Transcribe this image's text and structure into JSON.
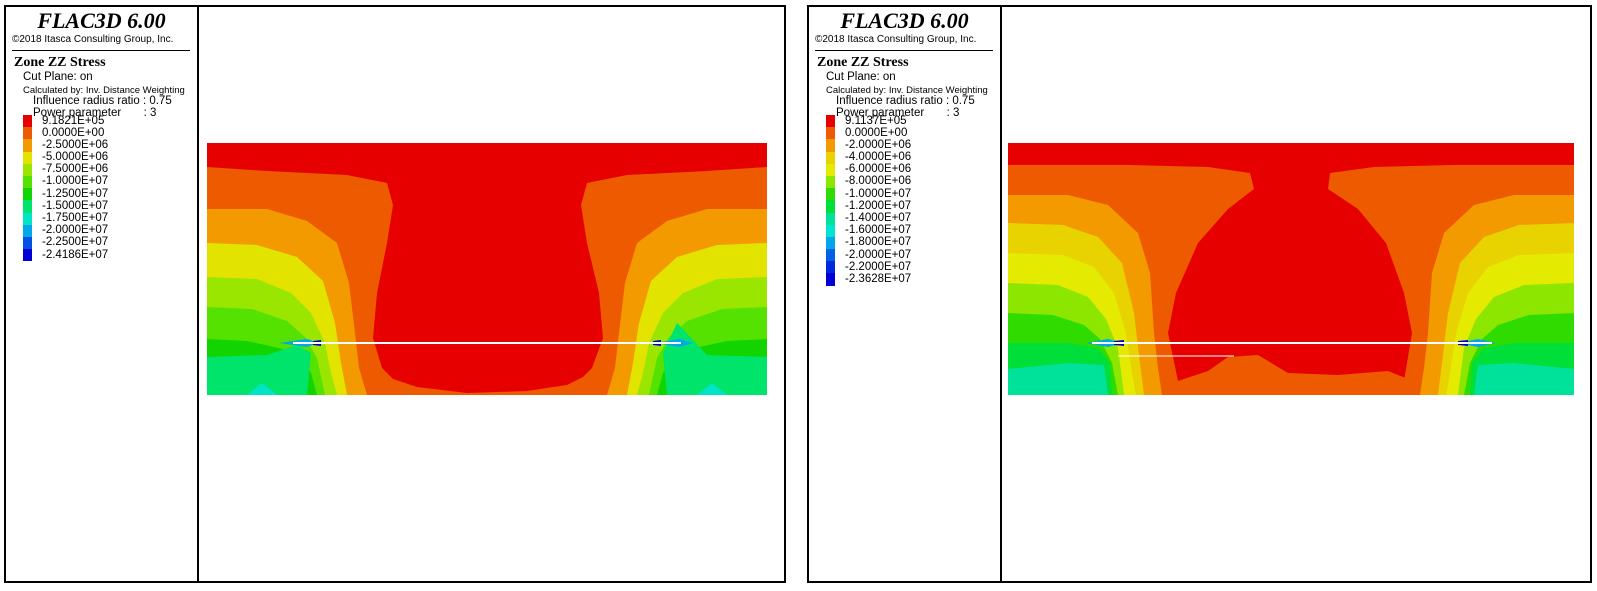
{
  "panels": [
    {
      "app_title": "FLAC3D 6.00",
      "copyright": "©2018 Itasca Consulting Group, Inc.",
      "plot_title": "Zone ZZ Stress",
      "cut_plane": "Cut Plane: on",
      "calculated_by": "Calculated by: Inv. Distance Weighting",
      "influence_radius": "Influence radius ratio : 0.75",
      "power_parameter": "Power parameter       : 3",
      "scale": [
        {
          "label": "9.1821E+05",
          "color": "#e60000"
        },
        {
          "label": "0.0000E+00",
          "color": "#ee5a00"
        },
        {
          "label": "-2.5000E+06",
          "color": "#f39a00"
        },
        {
          "label": "-5.0000E+06",
          "color": "#e2e400"
        },
        {
          "label": "-7.5000E+06",
          "color": "#9ae600"
        },
        {
          "label": "-1.0000E+07",
          "color": "#55e200"
        },
        {
          "label": "-1.2500E+07",
          "color": "#12d400"
        },
        {
          "label": "-1.5000E+07",
          "color": "#00e46c"
        },
        {
          "label": "-1.7500E+07",
          "color": "#00e5c8"
        },
        {
          "label": "-2.0000E+07",
          "color": "#00a8ea"
        },
        {
          "label": "-2.2500E+07",
          "color": "#0052e6"
        },
        {
          "label": "-2.4186E+07",
          "color": "#0000d6"
        }
      ]
    },
    {
      "app_title": "FLAC3D 6.00",
      "copyright": "©2018 Itasca Consulting Group, Inc.",
      "plot_title": "Zone ZZ Stress",
      "cut_plane": "Cut Plane: on",
      "calculated_by": "Calculated by: Inv. Distance Weighting",
      "influence_radius": "Influence radius ratio : 0.75",
      "power_parameter": "Power parameter       : 3",
      "scale": [
        {
          "label": "9.1137E+05",
          "color": "#e60000"
        },
        {
          "label": "0.0000E+00",
          "color": "#ee5a00"
        },
        {
          "label": "-2.0000E+06",
          "color": "#f39a00"
        },
        {
          "label": "-4.0000E+06",
          "color": "#e8d200"
        },
        {
          "label": "-6.0000E+06",
          "color": "#e4ea00"
        },
        {
          "label": "-8.0000E+06",
          "color": "#8ce600"
        },
        {
          "label": "-1.0000E+07",
          "color": "#30dc00"
        },
        {
          "label": "-1.2000E+07",
          "color": "#00de3a"
        },
        {
          "label": "-1.4000E+07",
          "color": "#00e29a"
        },
        {
          "label": "-1.6000E+07",
          "color": "#00e5d2"
        },
        {
          "label": "-1.8000E+07",
          "color": "#00a6ea"
        },
        {
          "label": "-2.0000E+07",
          "color": "#0060e8"
        },
        {
          "label": "-2.2000E+07",
          "color": "#0028e0"
        },
        {
          "label": "-2.3628E+07",
          "color": "#0000d6"
        }
      ]
    }
  ],
  "colors": {
    "background": "#ffffff",
    "border": "#000000",
    "seam_line": "#ffffff"
  }
}
